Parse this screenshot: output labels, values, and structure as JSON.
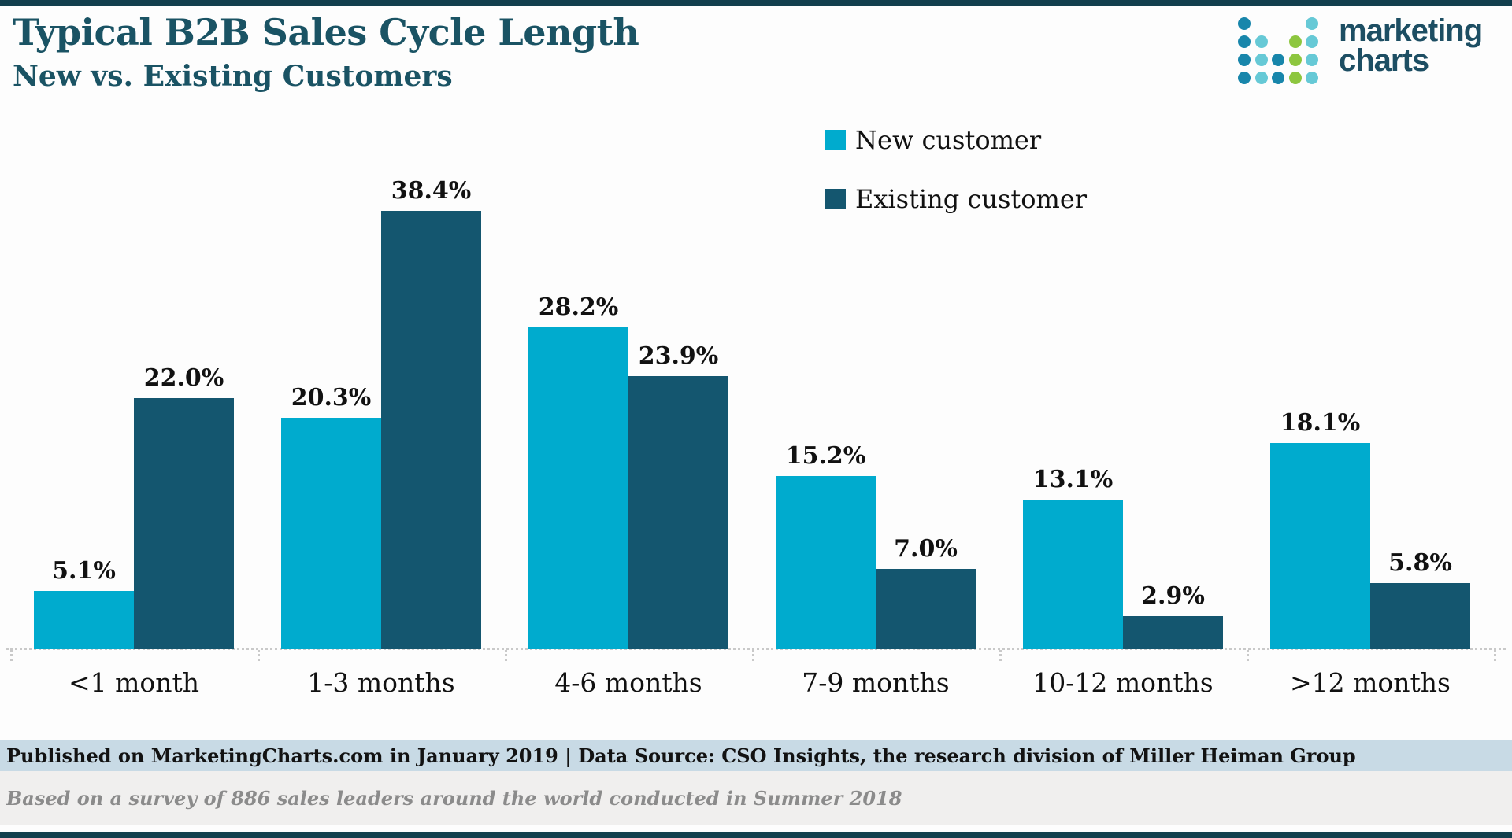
{
  "header": {
    "title": "Typical B2B Sales Cycle Length",
    "subtitle": "New vs. Existing Customers"
  },
  "logo": {
    "line1": "marketing",
    "line2": "charts",
    "dot_rows": [
      "B...T",
      "BT.GT",
      "BTBGT",
      "BTBGT"
    ],
    "dot_colors": {
      "B": "#1886ab",
      "T": "#66c9d6",
      "G": "#8dc63f"
    }
  },
  "chart_data": {
    "type": "bar",
    "title": "Typical B2B Sales Cycle Length",
    "subtitle": "New vs. Existing Customers",
    "categories": [
      "<1 month",
      "1-3 months",
      "4-6 months",
      "7-9 months",
      "10-12 months",
      ">12 months"
    ],
    "series": [
      {
        "name": "New customer",
        "color": "#00abce",
        "values": [
          5.1,
          20.3,
          28.2,
          15.2,
          13.1,
          18.1
        ]
      },
      {
        "name": "Existing customer",
        "color": "#14566f",
        "values": [
          22.0,
          38.4,
          23.9,
          7.0,
          2.9,
          5.8
        ]
      }
    ],
    "value_suffix": "%",
    "value_decimals": 1,
    "ylim": [
      0,
      40
    ],
    "grid": false,
    "legend_position": "top-right",
    "baseline_style": "dotted"
  },
  "footer": {
    "published": "Published on MarketingCharts.com in January 2019 | Data Source: CSO Insights, the research division of Miller Heiman Group",
    "note": "Based on a survey of 886 sales leaders around the world conducted in Summer 2018"
  }
}
